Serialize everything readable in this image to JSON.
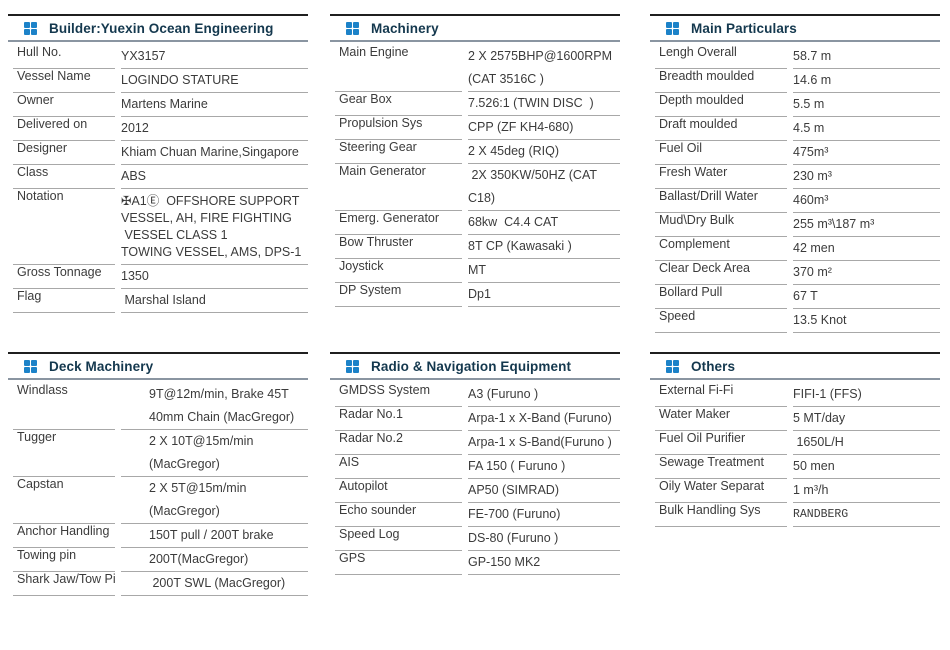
{
  "colors": {
    "accent_blue": "#1c82c8",
    "title_text": "#14384e",
    "header_top_rule": "#1f1f1f",
    "header_bottom_rule": "#8a95a1",
    "row_rule": "#a8a8a8",
    "body_text": "#3b3b3b"
  },
  "panel_icon": "grid-icon",
  "panels": [
    {
      "title": "Builder:Yuexin Ocean Engineering",
      "rows": [
        {
          "label": "Hull No.",
          "value": "YX3157"
        },
        {
          "label": "Vessel Name",
          "value": "LOGINDO STATURE"
        },
        {
          "label": "Owner",
          "value": "Martens Marine"
        },
        {
          "label": "Delivered on",
          "value": "2012"
        },
        {
          "label": "Designer",
          "value": "Khiam Chuan Marine,Singapore"
        },
        {
          "label": "Class",
          "value": "ABS"
        },
        {
          "label": "Notation",
          "tight": true,
          "value": [
            "✠A1Ⓔ  OFFSHORE SUPPORT",
            "VESSEL, AH, FIRE FIGHTING",
            " VESSEL CLASS 1",
            "TOWING VESSEL, AMS, DPS-1"
          ]
        },
        {
          "label": "Gross Tonnage",
          "value": "1350"
        },
        {
          "label": "Flag",
          "value": " Marshal Island"
        }
      ]
    },
    {
      "title": "Machinery",
      "rows": [
        {
          "label": "Main Engine",
          "value": [
            "2 X 2575BHP@1600RPM",
            "(CAT 3516C )"
          ]
        },
        {
          "label": "Gear Box",
          "value": "7.526:1 (TWIN DISC  )"
        },
        {
          "label": "Propulsion Sys",
          "value": "CPP (ZF KH4-680)"
        },
        {
          "label": "Steering Gear",
          "value": "2 X 45deg (RIQ)"
        },
        {
          "label": "Main Generator",
          "value": " 2X 350KW/50HZ (CAT C18)"
        },
        {
          "label": "Emerg. Generator",
          "value": "68kw  C4.4 CAT"
        },
        {
          "label": "Bow Thruster",
          "value": "8T CP (Kawasaki )"
        },
        {
          "label": "Joystick",
          "value": "MT"
        },
        {
          "label": "DP System",
          "value": "Dp1"
        }
      ]
    },
    {
      "title": "Main Particulars",
      "rows": [
        {
          "label": "Lengh Overall",
          "value": "58.7 m"
        },
        {
          "label": "Breadth moulded",
          "value": "14.6 m"
        },
        {
          "label": "Depth moulded",
          "value": "5.5 m"
        },
        {
          "label": "Draft moulded",
          "value": "4.5 m"
        },
        {
          "label": "Fuel Oil",
          "value": "475m³"
        },
        {
          "label": "Fresh Water",
          "value": "230 m³"
        },
        {
          "label": "Ballast/Drill Water",
          "value": "460m³"
        },
        {
          "label": "Mud\\Dry Bulk",
          "value": "255 m³\\187 m³"
        },
        {
          "label": "Complement",
          "value": "42 men"
        },
        {
          "label": "Clear Deck Area",
          "value": "370 m²"
        },
        {
          "label": "Bollard Pull",
          "value": "67 T"
        },
        {
          "label": "Speed",
          "value": "13.5 Knot"
        }
      ]
    },
    {
      "title": "Deck Machinery",
      "rows": [
        {
          "label": "Windlass",
          "value": [
            "9T@12m/min, Brake 45T",
            "40mm Chain (MacGregor)"
          ]
        },
        {
          "label": "Tugger",
          "value": "2 X 10T@15m/min (MacGregor)"
        },
        {
          "label": "Capstan",
          "value": "2 X 5T@15m/min  (MacGregor)"
        },
        {
          "label": "Anchor Handling",
          "value": "150T pull / 200T brake"
        },
        {
          "label": "Towing pin",
          "value": "200T(MacGregor)"
        },
        {
          "label": "Shark Jaw/Tow Pin",
          "value": " 200T SWL (MacGregor)"
        }
      ]
    },
    {
      "title": "Radio & Navigation Equipment",
      "rows": [
        {
          "label": "GMDSS System",
          "value": "A3 (Furuno )"
        },
        {
          "label": "Radar No.1",
          "value": "Arpa-1 x X-Band (Furuno)"
        },
        {
          "label": "Radar No.2",
          "value": "Arpa-1 x S-Band(Furuno )"
        },
        {
          "label": "AIS",
          "value": "FA 150 ( Furuno )"
        },
        {
          "label": "Autopilot",
          "value": "AP50 (SIMRAD)"
        },
        {
          "label": "Echo sounder",
          "value": "FE-700 (Furuno)"
        },
        {
          "label": "Speed Log",
          "value": "DS-80 (Furuno )"
        },
        {
          "label": "GPS",
          "value": "GP-150 MK2"
        }
      ]
    },
    {
      "title": "Others",
      "rows": [
        {
          "label": "External Fi-Fi",
          "value": "FIFI-1 (FFS)"
        },
        {
          "label": "Water Maker",
          "value": "5 MT/day"
        },
        {
          "label": "Fuel Oil Purifier",
          "value": " 1650L/H"
        },
        {
          "label": "Sewage Treatment",
          "value": "50 men"
        },
        {
          "label": "Oily Water Separat",
          "value": "1 m³/h"
        },
        {
          "label": "Bulk Handling Sys",
          "value": "RANDBERG",
          "mono": true
        }
      ]
    }
  ]
}
